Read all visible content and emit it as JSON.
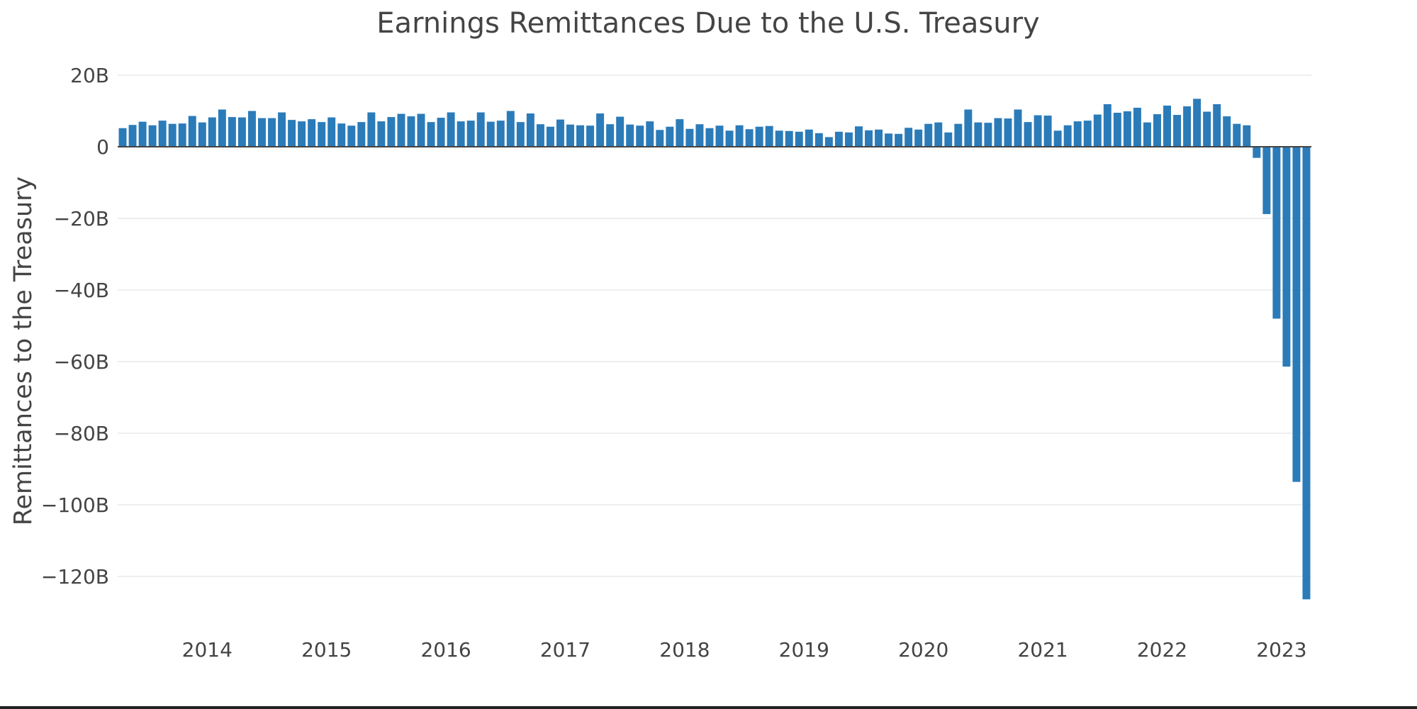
{
  "chart_data": {
    "type": "bar",
    "title": "Earnings Remittances Due to the U.S. Treasury",
    "xlabel": "",
    "ylabel": "Remittances to the Treasury",
    "ylim": [
      -130,
      20
    ],
    "y_unit": "billions of USD",
    "yticks": [
      20,
      0,
      -20,
      -40,
      -60,
      -80,
      -100,
      -120
    ],
    "ytick_labels": [
      "20B",
      "0",
      "−20B",
      "−40B",
      "−60B",
      "−80B",
      "−100B",
      "−120B"
    ],
    "x_start": "2013-04",
    "x_end": "2023-03",
    "xticks": [
      2014,
      2015,
      2016,
      2017,
      2018,
      2019,
      2020,
      2021,
      2022,
      2023
    ],
    "xtick_labels": [
      "2014",
      "2015",
      "2016",
      "2017",
      "2018",
      "2019",
      "2020",
      "2021",
      "2022",
      "2023"
    ],
    "series_name": "Remittances",
    "bar_color": "#2b7bb9",
    "grid_color": "#e9e9e9",
    "values": [
      5.2,
      6.1,
      7.0,
      6.0,
      7.3,
      6.4,
      6.5,
      8.6,
      6.8,
      8.2,
      10.4,
      8.3,
      8.2,
      10.0,
      8.0,
      8.0,
      9.6,
      7.5,
      7.1,
      7.7,
      6.9,
      8.2,
      6.5,
      5.9,
      6.9,
      9.6,
      7.1,
      8.3,
      9.2,
      8.5,
      9.2,
      6.9,
      8.1,
      9.6,
      7.1,
      7.3,
      9.6,
      7.0,
      7.3,
      10.0,
      6.9,
      9.3,
      6.3,
      5.6,
      7.6,
      6.2,
      6.0,
      5.9,
      9.3,
      6.3,
      8.4,
      6.2,
      5.9,
      7.1,
      4.7,
      5.6,
      7.7,
      5.0,
      6.3,
      5.2,
      5.9,
      4.5,
      6.0,
      4.9,
      5.6,
      5.8,
      4.5,
      4.4,
      4.2,
      4.8,
      3.8,
      2.7,
      4.2,
      4.0,
      5.7,
      4.6,
      4.8,
      3.7,
      3.6,
      5.3,
      4.8,
      6.4,
      6.8,
      4.0,
      6.4,
      10.4,
      6.8,
      6.7,
      8.0,
      7.9,
      10.4,
      6.9,
      8.8,
      8.7,
      4.5,
      6.0,
      7.1,
      7.3,
      9.0,
      11.9,
      9.5,
      9.9,
      10.9,
      6.8,
      9.1,
      11.5,
      8.9,
      11.3,
      13.4,
      9.8,
      11.9,
      8.5,
      6.4,
      6.0,
      -3.1,
      -18.8,
      -48.0,
      -61.4,
      -93.6,
      -126.4
    ]
  }
}
